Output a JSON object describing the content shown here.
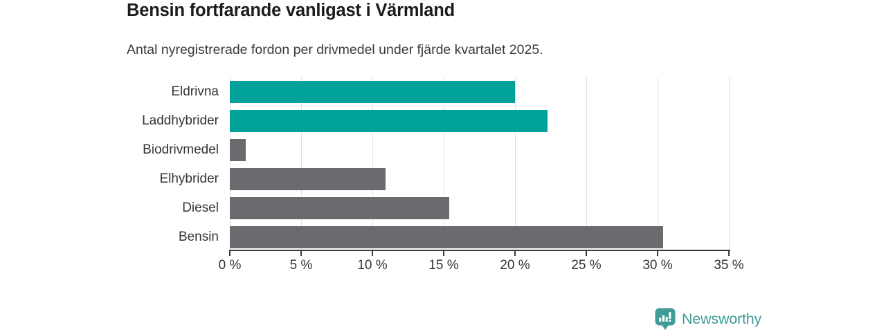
{
  "header": {
    "title": "Bensin fortfarande vanligast i Värmland",
    "subtitle": "Antal nyregistrerade fordon per drivmedel under fjärde kvartalet 2025."
  },
  "chart_data": {
    "type": "bar",
    "orientation": "horizontal",
    "title": "Bensin fortfarande vanligast i Värmland",
    "subtitle": "Antal nyregistrerade fordon per drivmedel under fjärde kvartalet 2025.",
    "categories": [
      "Eldrivna",
      "Laddhybrider",
      "Biodrivmedel",
      "Elhybrider",
      "Diesel",
      "Bensin"
    ],
    "values": [
      20.0,
      22.3,
      1.1,
      10.9,
      15.4,
      30.4
    ],
    "unit": "%",
    "xlim": [
      0,
      35
    ],
    "x_tick_values": [
      0,
      5,
      10,
      15,
      20,
      25,
      30,
      35
    ],
    "x_tick_labels": [
      "0 %",
      "5 %",
      "10 %",
      "15 %",
      "20 %",
      "25 %",
      "30 %",
      "35 %"
    ],
    "grid": true,
    "legend": "none",
    "bar_colors": [
      "#00a29a",
      "#00a29a",
      "#6c696f",
      "#6c696f",
      "#6c696f",
      "#6c696f"
    ],
    "colors": {
      "teal": "#00a29a",
      "gray": "#6c696f",
      "gridline": "#e0e0e0",
      "axis": "#3a3a3a",
      "text": "#333333"
    }
  },
  "footer": {
    "brand": "Newsworthy",
    "brand_color": "#3f9c96",
    "logo_icon": "newsworthy-pin-bar-chart-icon"
  }
}
